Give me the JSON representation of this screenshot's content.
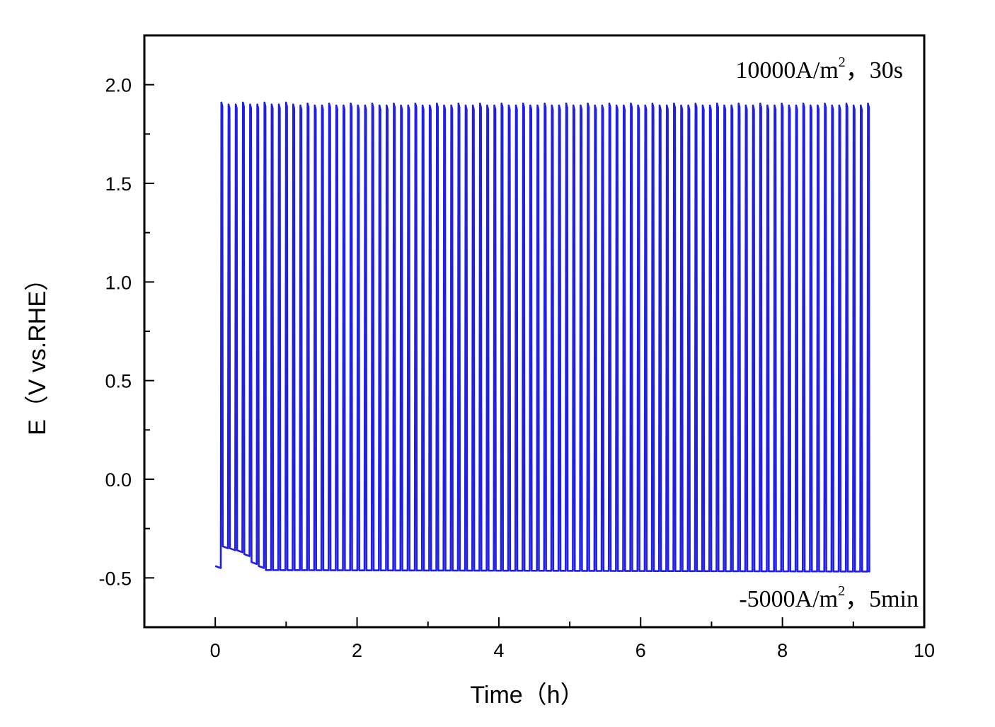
{
  "chart_data": {
    "type": "line",
    "title": "",
    "xlabel": "Time（h）",
    "ylabel": "E（V vs.RHE）",
    "xlim": [
      -1,
      10
    ],
    "ylim": [
      -0.75,
      2.25
    ],
    "x_ticks": [
      0,
      2,
      4,
      6,
      8,
      10
    ],
    "x_tick_labels": [
      "0",
      "2",
      "4",
      "6",
      "8",
      "10"
    ],
    "y_ticks": [
      -0.5,
      0.0,
      0.5,
      1.0,
      1.5,
      2.0
    ],
    "y_tick_labels": [
      "-0.5",
      "0.0",
      "0.5",
      "1.0",
      "1.5",
      "2.0"
    ],
    "grid": false,
    "line_color": "#1f1fe6",
    "annotations": [
      {
        "label": "10000A/m",
        "sup": "2",
        "suffix": "，30s",
        "anchor": "top-right"
      },
      {
        "label": "-5000A/m",
        "sup": "2",
        "suffix": "，5min",
        "anchor": "bottom-right"
      }
    ],
    "series": [
      {
        "name": "",
        "pulse_start_h": 0.08,
        "pulse_end_h": 9.2,
        "pulse_count": 91,
        "pulse_peak_V": 1.9,
        "baseline_V": -0.46,
        "initial_baseline_V": -0.44,
        "early_pulse_plateau_V": [
          -0.34,
          -0.35,
          -0.36,
          -0.38,
          -0.42,
          -0.44
        ],
        "points": [
          [
            0.0,
            -0.44
          ],
          [
            0.08,
            -0.45
          ],
          [
            0.09,
            1.92
          ],
          [
            0.1,
            -0.34
          ],
          [
            0.18,
            -0.34
          ],
          [
            0.19,
            1.91
          ],
          [
            0.2,
            -0.35
          ],
          [
            0.28,
            -0.35
          ],
          [
            0.29,
            1.91
          ],
          [
            0.3,
            -0.36
          ],
          [
            0.38,
            -0.37
          ],
          [
            0.39,
            1.91
          ],
          [
            0.4,
            -0.38
          ],
          [
            0.48,
            -0.39
          ],
          [
            0.49,
            1.91
          ],
          [
            0.5,
            -0.41
          ],
          [
            0.58,
            -0.42
          ],
          [
            0.59,
            1.91
          ],
          [
            0.6,
            -0.44
          ],
          [
            0.7,
            -0.45
          ],
          [
            1.0,
            -0.45
          ],
          [
            2.0,
            -0.455
          ],
          [
            4.0,
            -0.46
          ],
          [
            6.0,
            -0.46
          ],
          [
            8.0,
            -0.465
          ],
          [
            9.2,
            -0.465
          ]
        ]
      }
    ]
  }
}
